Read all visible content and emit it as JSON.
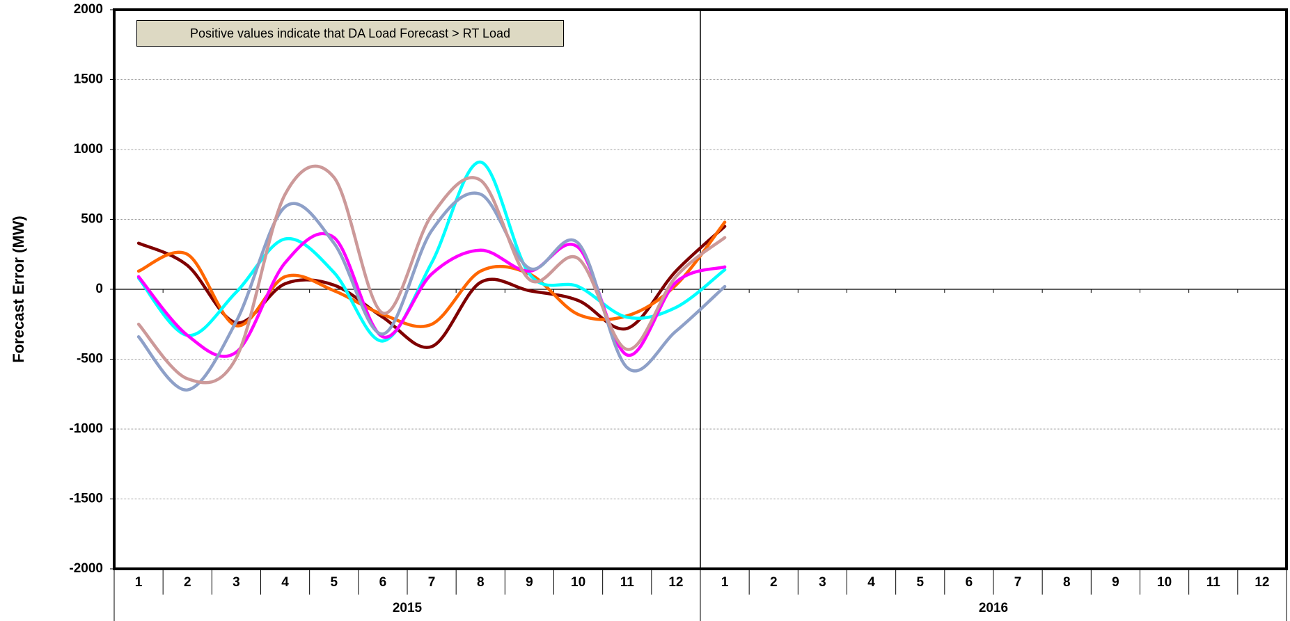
{
  "annotation": "Positive values indicate that DA Load Forecast > RT Load",
  "chart_data": {
    "type": "line",
    "title": "",
    "xlabel": "",
    "ylabel": "Forecast Error (MW)",
    "ylim": [
      -2000,
      2000
    ],
    "yticks": [
      2000,
      1500,
      1000,
      500,
      0,
      -500,
      -1000,
      -1500,
      -2000
    ],
    "grid": true,
    "months": [
      "1",
      "2",
      "3",
      "4",
      "5",
      "6",
      "7",
      "8",
      "9",
      "10",
      "11",
      "12",
      "1",
      "2",
      "3",
      "4",
      "5",
      "6",
      "7",
      "8",
      "9",
      "10",
      "11",
      "12"
    ],
    "years": [
      "2015",
      "2016"
    ],
    "x": [
      "2015-01",
      "2015-02",
      "2015-03",
      "2015-04",
      "2015-05",
      "2015-06",
      "2015-07",
      "2015-08",
      "2015-09",
      "2015-10",
      "2015-11",
      "2015-12",
      "2016-01"
    ],
    "series": [
      {
        "color": "#7f0000",
        "values": [
          330,
          170,
          -240,
          40,
          30,
          -200,
          -410,
          50,
          -10,
          -80,
          -280,
          130,
          450
        ]
      },
      {
        "color": "#ff6600",
        "values": [
          130,
          250,
          -260,
          90,
          -10,
          -180,
          -250,
          130,
          110,
          -180,
          -190,
          30,
          480
        ]
      },
      {
        "color": "#00ffff",
        "values": [
          80,
          -330,
          -20,
          360,
          120,
          -370,
          190,
          910,
          110,
          20,
          -200,
          -130,
          140
        ]
      },
      {
        "color": "#ff00ff",
        "values": [
          90,
          -330,
          -450,
          190,
          370,
          -340,
          110,
          280,
          130,
          300,
          -470,
          50,
          160
        ]
      },
      {
        "color": "#8ea0c8",
        "values": [
          -340,
          -720,
          -230,
          590,
          330,
          -320,
          420,
          680,
          150,
          330,
          -560,
          -300,
          20
        ]
      },
      {
        "color": "#cc9999",
        "values": [
          -250,
          -640,
          -490,
          680,
          800,
          -170,
          530,
          780,
          70,
          220,
          -430,
          90,
          370
        ]
      }
    ]
  }
}
